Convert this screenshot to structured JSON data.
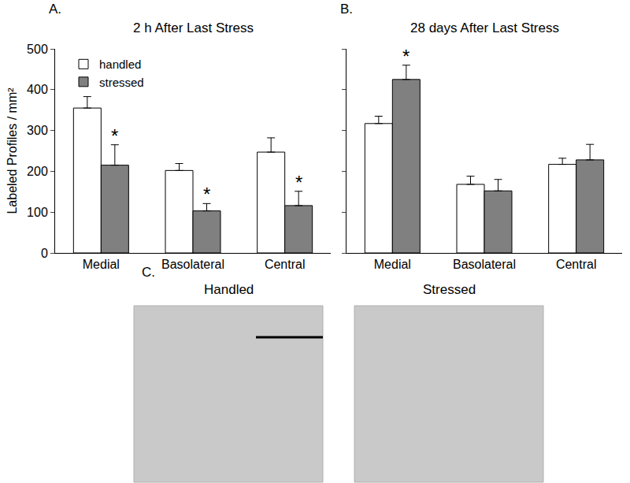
{
  "chart_data": [
    {
      "type": "bar",
      "title": "2 h After Last Stress",
      "y_label": "Labeled Profiles / mm²",
      "categories": [
        "Medial",
        "Basolateral",
        "Central"
      ],
      "series": [
        {
          "name": "handled",
          "color": "#ffffff",
          "values": [
            355,
            202,
            247
          ],
          "errors": [
            28,
            17,
            35
          ]
        },
        {
          "name": "stressed",
          "color": "#808080",
          "values": [
            215,
            103,
            116
          ],
          "errors": [
            50,
            18,
            35
          ]
        }
      ],
      "ylim": [
        0,
        500
      ],
      "yticks": [
        0,
        100,
        200,
        300,
        400,
        500
      ],
      "legend": "upper left",
      "annotations": [
        {
          "text": "A."
        },
        {
          "category": "Medial",
          "series": "stressed",
          "text": "*"
        },
        {
          "category": "Basolateral",
          "series": "stressed",
          "text": "*"
        },
        {
          "category": "Central",
          "series": "stressed",
          "text": "*"
        }
      ]
    },
    {
      "type": "bar",
      "title": "28 days After Last Stress",
      "categories": [
        "Medial",
        "Basolateral",
        "Central"
      ],
      "series": [
        {
          "name": "handled",
          "color": "#ffffff",
          "values": [
            317,
            168,
            217
          ],
          "errors": [
            18,
            20,
            15
          ]
        },
        {
          "name": "stressed",
          "color": "#808080",
          "values": [
            425,
            152,
            228
          ],
          "errors": [
            35,
            28,
            38
          ]
        }
      ],
      "ylim": [
        0,
        500
      ],
      "yticks": [
        0,
        100,
        200,
        300,
        400,
        500
      ],
      "tick_labels": "x",
      "annotations": [
        {
          "text": "B."
        },
        {
          "category": "Medial",
          "series": "stressed",
          "text": "*"
        }
      ]
    }
  ],
  "panel_c": {
    "label": "C.",
    "images": [
      {
        "title": "Handled"
      },
      {
        "title": "Stressed"
      }
    ]
  }
}
